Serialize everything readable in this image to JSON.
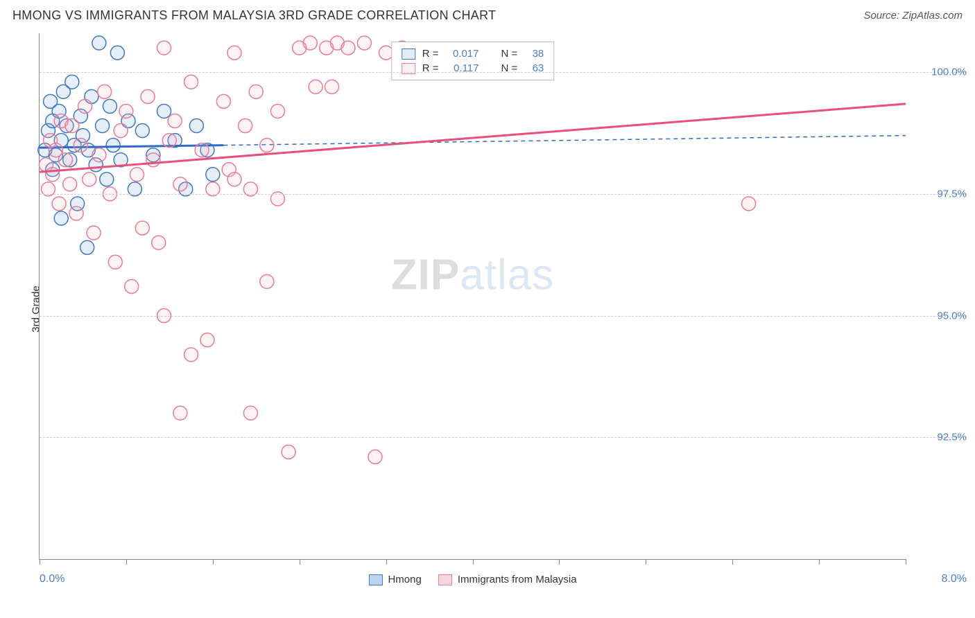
{
  "title": "HMONG VS IMMIGRANTS FROM MALAYSIA 3RD GRADE CORRELATION CHART",
  "source": "Source: ZipAtlas.com",
  "ylabel": "3rd Grade",
  "watermark": {
    "part1": "ZIP",
    "part2": "atlas"
  },
  "chart": {
    "type": "scatter",
    "xlim": [
      0.0,
      8.0
    ],
    "ylim": [
      90.0,
      100.8
    ],
    "background_color": "#ffffff",
    "grid_color": "#cccccc",
    "axis_color": "#888888",
    "tick_label_color": "#4a7ec9",
    "tick_fontsize": 15,
    "yticks": [
      92.5,
      95.0,
      97.5,
      100.0
    ],
    "ytick_labels": [
      "92.5%",
      "95.0%",
      "97.5%",
      "100.0%"
    ],
    "xticks": [
      0.0,
      0.8,
      1.6,
      2.4,
      3.2,
      4.0,
      4.8,
      5.6,
      6.4,
      7.2,
      8.0
    ],
    "xaxis_left_label": "0.0%",
    "xaxis_right_label": "8.0%",
    "marker_radius": 10,
    "marker_stroke_width": 1.5,
    "marker_fill_opacity": 0.18,
    "trend_line_width": 3,
    "extrapolation_dash": "6,5"
  },
  "series": [
    {
      "key": "hmong",
      "label": "Hmong",
      "color": "#6ea3e0",
      "stroke": "#3f77bd",
      "line_color": "#2f6ac0",
      "stats": {
        "R": "0.017",
        "N": "38"
      },
      "trend": {
        "x1": 0.0,
        "y1": 98.45,
        "x2": 1.7,
        "y2": 98.5,
        "ext_x2": 8.0,
        "ext_y2": 98.7
      },
      "points": [
        [
          0.05,
          98.4
        ],
        [
          0.08,
          98.8
        ],
        [
          0.1,
          99.4
        ],
        [
          0.12,
          98.0
        ],
        [
          0.12,
          99.0
        ],
        [
          0.15,
          98.3
        ],
        [
          0.18,
          99.2
        ],
        [
          0.2,
          98.6
        ],
        [
          0.2,
          97.0
        ],
        [
          0.22,
          99.6
        ],
        [
          0.25,
          98.9
        ],
        [
          0.28,
          98.2
        ],
        [
          0.3,
          99.8
        ],
        [
          0.32,
          98.5
        ],
        [
          0.35,
          97.3
        ],
        [
          0.38,
          99.1
        ],
        [
          0.4,
          98.7
        ],
        [
          0.44,
          96.4
        ],
        [
          0.45,
          98.4
        ],
        [
          0.48,
          99.5
        ],
        [
          0.52,
          98.1
        ],
        [
          0.55,
          100.6
        ],
        [
          0.58,
          98.9
        ],
        [
          0.62,
          97.8
        ],
        [
          0.65,
          99.3
        ],
        [
          0.68,
          98.5
        ],
        [
          0.72,
          100.4
        ],
        [
          0.75,
          98.2
        ],
        [
          0.82,
          99.0
        ],
        [
          0.88,
          97.6
        ],
        [
          0.95,
          98.8
        ],
        [
          1.05,
          98.3
        ],
        [
          1.15,
          99.2
        ],
        [
          1.25,
          98.6
        ],
        [
          1.35,
          97.6
        ],
        [
          1.45,
          98.9
        ],
        [
          1.55,
          98.4
        ],
        [
          1.6,
          97.9
        ]
      ]
    },
    {
      "key": "malaysia",
      "label": "Immigrants from Malaysia",
      "color": "#f4b6c4",
      "stroke": "#e87a9a",
      "line_color": "#e94f7a",
      "stats": {
        "R": "0.117",
        "N": "63"
      },
      "trend": {
        "x1": 0.0,
        "y1": 97.95,
        "x2": 8.0,
        "y2": 99.35
      },
      "points": [
        [
          0.06,
          98.1
        ],
        [
          0.08,
          97.6
        ],
        [
          0.1,
          98.6
        ],
        [
          0.12,
          97.9
        ],
        [
          0.15,
          98.4
        ],
        [
          0.18,
          97.3
        ],
        [
          0.2,
          99.0
        ],
        [
          0.24,
          98.2
        ],
        [
          0.28,
          97.7
        ],
        [
          0.3,
          98.9
        ],
        [
          0.34,
          97.1
        ],
        [
          0.38,
          98.5
        ],
        [
          0.42,
          99.3
        ],
        [
          0.46,
          97.8
        ],
        [
          0.5,
          96.7
        ],
        [
          0.55,
          98.3
        ],
        [
          0.6,
          99.6
        ],
        [
          0.65,
          97.5
        ],
        [
          0.7,
          96.1
        ],
        [
          0.75,
          98.8
        ],
        [
          0.8,
          99.2
        ],
        [
          0.85,
          95.6
        ],
        [
          0.9,
          97.9
        ],
        [
          0.95,
          96.8
        ],
        [
          1.0,
          99.5
        ],
        [
          1.05,
          98.2
        ],
        [
          1.1,
          96.5
        ],
        [
          1.15,
          100.5
        ],
        [
          1.15,
          95.0
        ],
        [
          1.2,
          98.6
        ],
        [
          1.25,
          99.0
        ],
        [
          1.3,
          97.7
        ],
        [
          1.3,
          93.0
        ],
        [
          1.4,
          99.8
        ],
        [
          1.4,
          94.2
        ],
        [
          1.5,
          98.4
        ],
        [
          1.55,
          94.5
        ],
        [
          1.6,
          97.6
        ],
        [
          1.7,
          99.4
        ],
        [
          1.75,
          98.0
        ],
        [
          1.8,
          100.4
        ],
        [
          1.8,
          97.8
        ],
        [
          1.9,
          98.9
        ],
        [
          1.95,
          93.0
        ],
        [
          1.95,
          97.6
        ],
        [
          2.0,
          99.6
        ],
        [
          2.1,
          95.7
        ],
        [
          2.1,
          98.5
        ],
        [
          2.2,
          97.4
        ],
        [
          2.2,
          99.2
        ],
        [
          2.3,
          92.2
        ],
        [
          2.4,
          100.5
        ],
        [
          2.5,
          100.6
        ],
        [
          2.55,
          99.7
        ],
        [
          2.65,
          100.5
        ],
        [
          2.7,
          99.7
        ],
        [
          2.75,
          100.6
        ],
        [
          2.85,
          100.5
        ],
        [
          3.0,
          100.6
        ],
        [
          3.1,
          92.1
        ],
        [
          3.2,
          100.4
        ],
        [
          3.35,
          100.5
        ],
        [
          6.55,
          97.3
        ]
      ]
    }
  ],
  "bottom_legend": [
    {
      "label": "Hmong",
      "fill": "#bcd4f0",
      "border": "#3f77bd"
    },
    {
      "label": "Immigrants from Malaysia",
      "fill": "#f9d5de",
      "border": "#e87a9a"
    }
  ],
  "stats_box": {
    "r_label": "R =",
    "n_label": "N ="
  }
}
